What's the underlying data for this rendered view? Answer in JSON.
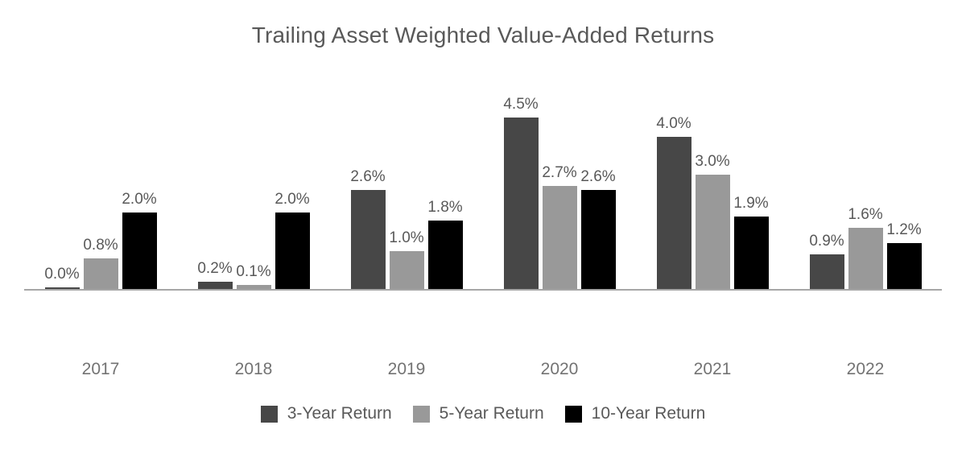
{
  "chart_data": {
    "type": "bar",
    "title": "Trailing Asset Weighted Value-Added Returns",
    "categories": [
      "2017",
      "2018",
      "2019",
      "2020",
      "2021",
      "2022"
    ],
    "series": [
      {
        "name": "3-Year Return",
        "color": "#474747",
        "values": [
          0.0,
          0.2,
          2.6,
          4.5,
          4.0,
          0.9
        ]
      },
      {
        "name": "5-Year Return",
        "color": "#999999",
        "values": [
          0.8,
          0.1,
          1.0,
          2.7,
          3.0,
          1.6
        ]
      },
      {
        "name": "10-Year Return",
        "color": "#000000",
        "values": [
          2.0,
          2.0,
          1.8,
          2.6,
          1.9,
          1.2
        ]
      }
    ],
    "value_suffix": "%",
    "ylim": [
      0,
      5
    ],
    "grid": false,
    "data_labels": true,
    "legend_position": "bottom",
    "axis_line_color": "#a6a6a6"
  }
}
